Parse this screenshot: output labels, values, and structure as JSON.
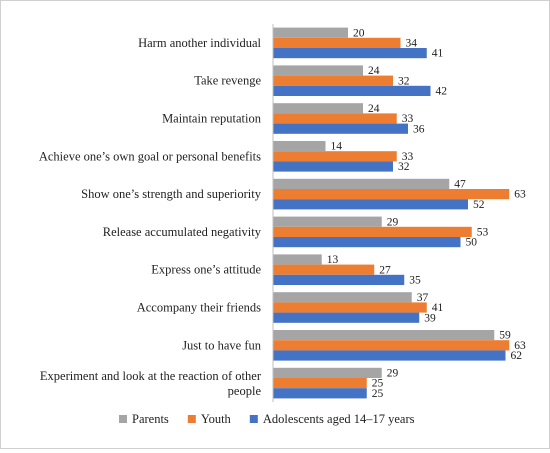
{
  "chart_data": {
    "type": "bar",
    "orientation": "horizontal",
    "categories": [
      "Harm another individual",
      "Take revenge",
      "Maintain reputation",
      "Achieve one’s own goal or personal benefits",
      "Show one’s strength and superiority",
      "Release accumulated negativity",
      "Express one’s attitude",
      "Accompany their friends",
      "Just to have fun",
      "Experiment and look at the reaction of other people"
    ],
    "series": [
      {
        "name": "Parents",
        "color": "#a5a5a5",
        "values": [
          20,
          24,
          24,
          14,
          47,
          29,
          13,
          37,
          59,
          29
        ]
      },
      {
        "name": "Youth",
        "color": "#ed7d31",
        "values": [
          34,
          32,
          33,
          33,
          63,
          53,
          27,
          41,
          63,
          25
        ]
      },
      {
        "name": "Adolescents aged 14–17 years",
        "color": "#4472c4",
        "values": [
          41,
          42,
          36,
          32,
          52,
          50,
          35,
          39,
          62,
          25
        ]
      }
    ],
    "xlim": [
      0,
      70
    ],
    "grid": false,
    "data_labels": true,
    "legend_position": "bottom"
  }
}
